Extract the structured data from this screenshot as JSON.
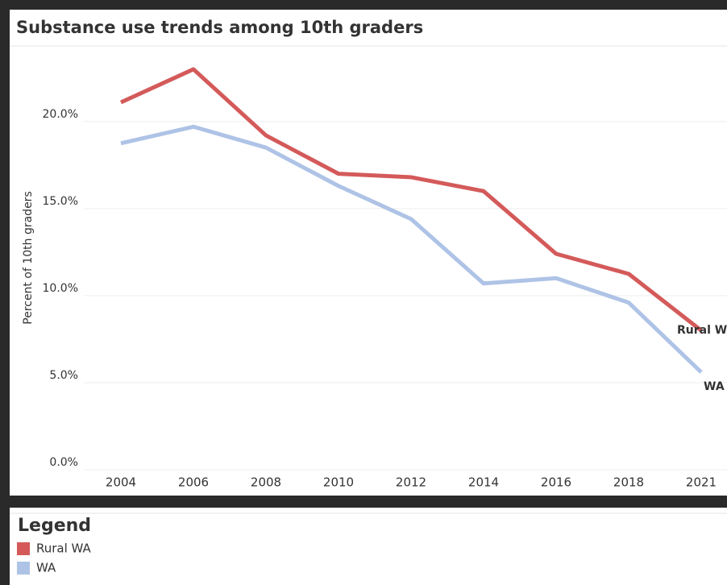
{
  "chart_data": {
    "type": "line",
    "title": "Substance use trends among 10th graders",
    "y_label": "Percent of 10th graders",
    "categories": [
      "2004",
      "2006",
      "2008",
      "2010",
      "2012",
      "2014",
      "2016",
      "2018",
      "2021"
    ],
    "series": [
      {
        "name": "Rural WA",
        "color": "#d45a5a",
        "values": [
          21.1,
          23.0,
          19.2,
          17.0,
          16.8,
          16.0,
          12.4,
          11.25,
          8.0
        ]
      },
      {
        "name": "WA",
        "color": "#aec3e6",
        "values": [
          18.75,
          19.7,
          18.5,
          16.3,
          14.4,
          10.7,
          11.0,
          9.6,
          5.6
        ]
      }
    ],
    "ylim": [
      0,
      24.2
    ],
    "yticks": [
      {
        "value": 0,
        "label": "0.0%"
      },
      {
        "value": 5,
        "label": "5.0%"
      },
      {
        "value": 10,
        "label": "10.0%"
      },
      {
        "value": 15,
        "label": "15.0%"
      },
      {
        "value": 20,
        "label": "20.0%"
      }
    ],
    "grid": true,
    "legend_title": "Legend"
  }
}
